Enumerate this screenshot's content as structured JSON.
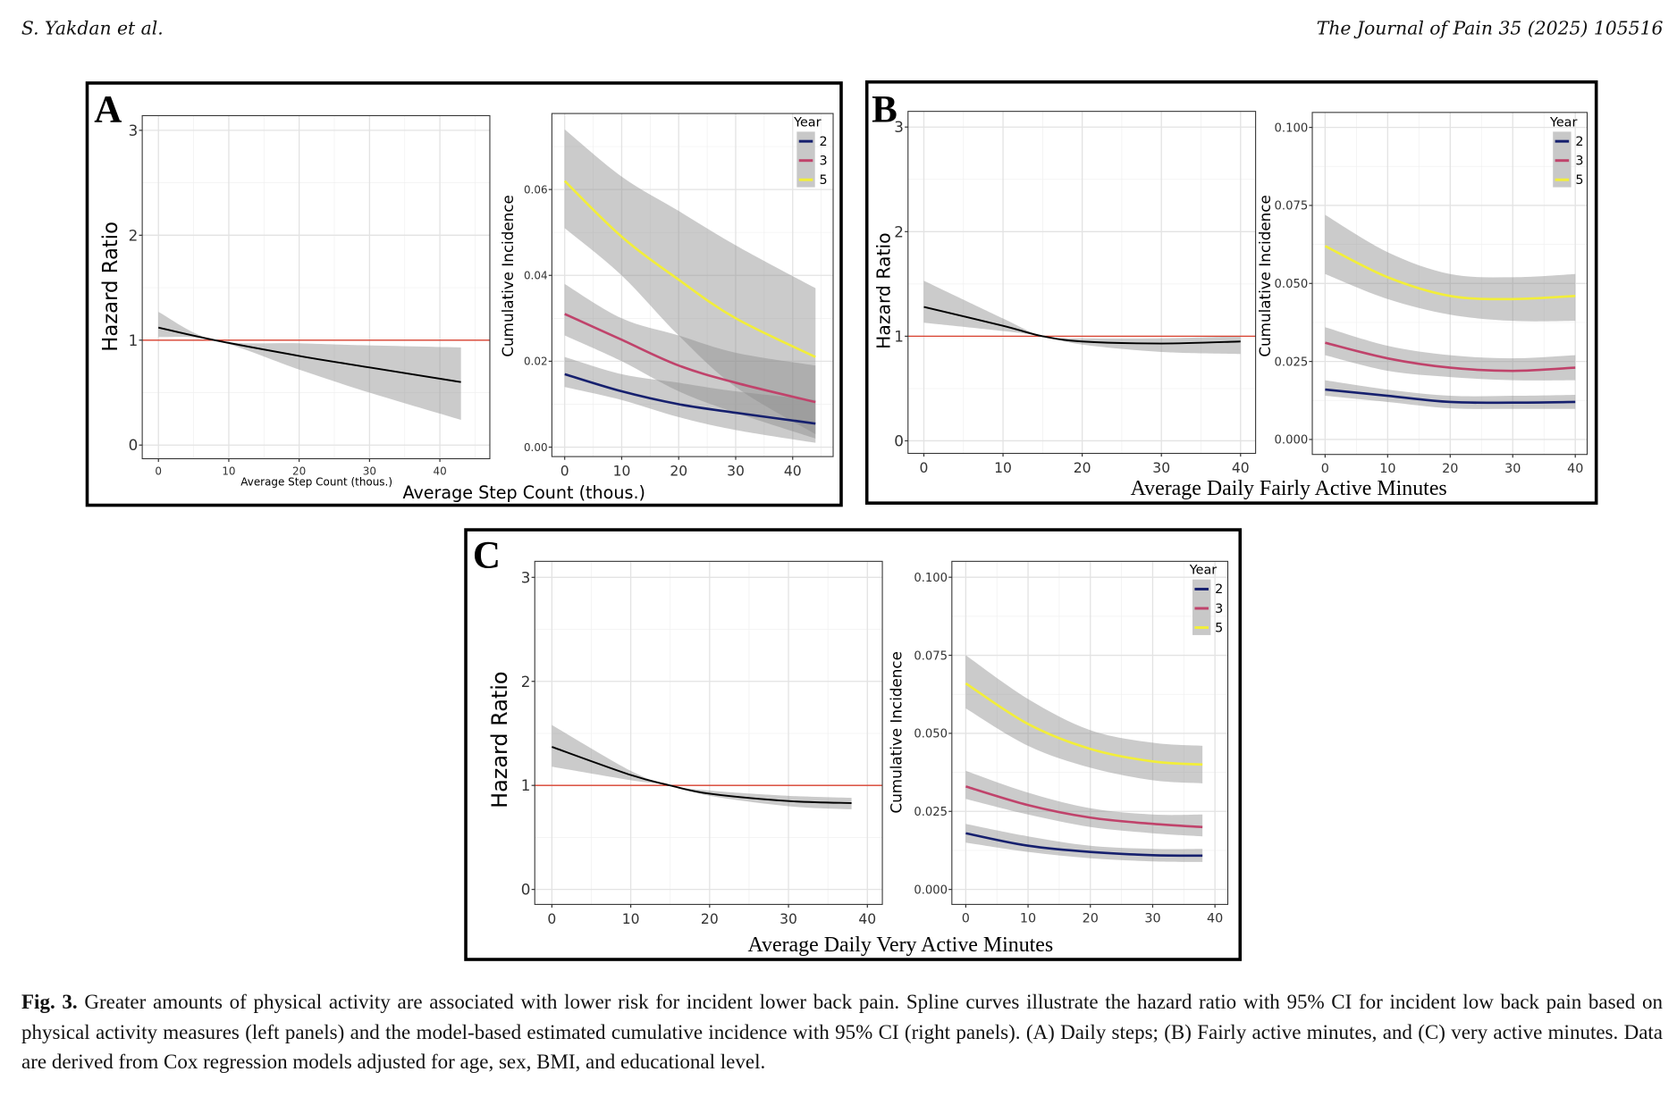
{
  "header": {
    "authors": "S. Yakdan et al.",
    "journal": "The Journal of Pain 35 (2025) 105516"
  },
  "panels": [
    {
      "letter": "A",
      "xlabel": "Average Step Count (thous.)"
    },
    {
      "letter": "B",
      "xlabel": "Average Daily Fairly Active Minutes"
    },
    {
      "letter": "C",
      "xlabel": "Average Daily Very Active Minutes"
    }
  ],
  "caption": {
    "label": "Fig. 3.",
    "text": " Greater amounts of physical activity are associated with lower risk for incident lower back pain. Spline curves illustrate the hazard ratio with 95% CI for incident low back pain based on physical activity measures (left panels) and the model-based estimated cumulative incidence with 95% CI (right panels). (A) Daily steps; (B) Fairly active minutes, and (C) very active minutes. Data are derived from Cox regression models adjusted for age, sex, BMI, and educational level."
  },
  "chart_data": [
    {
      "panel": "A",
      "type": "line",
      "ylabel": "Hazard Ratio",
      "xlabel": "Average Step Count (thous.)",
      "xlim": [
        -2.3,
        47.1
      ],
      "ylim": [
        -0.13,
        3.14
      ],
      "xticks": [
        0,
        10,
        20,
        30,
        40
      ],
      "xtick_labels": [
        "0",
        "10",
        "20",
        "30",
        "40"
      ],
      "yticks": [
        0,
        1,
        2,
        3
      ],
      "ytick_labels": [
        "0",
        "1",
        "2",
        "3"
      ],
      "grid": true,
      "reference_line": {
        "y": 1,
        "color": "#d9412f"
      },
      "series": [
        {
          "x": [
            0,
            8,
            20,
            30,
            43
          ],
          "y": [
            1.12,
            1.0,
            0.85,
            0.74,
            0.6
          ],
          "lower": [
            1.03,
            1.0,
            0.72,
            0.5,
            0.24
          ],
          "upper": [
            1.27,
            1.0,
            0.97,
            0.95,
            0.93
          ],
          "color": "#000000"
        }
      ]
    },
    {
      "panel": "A",
      "type": "line",
      "ylabel": "Cumulative Incidence",
      "xlim": [
        -2.25,
        47.1
      ],
      "ylim": [
        -0.0022,
        0.0777
      ],
      "xticks": [
        0,
        10,
        20,
        30,
        40
      ],
      "xtick_labels": [
        "0",
        "10",
        "20",
        "30",
        "40"
      ],
      "yticks": [
        0,
        0.02,
        0.04,
        0.06
      ],
      "ytick_labels": [
        "0.00",
        "0.02",
        "0.04",
        "0.06"
      ],
      "grid": true,
      "legend": {
        "title": "Year",
        "placement": "top-right"
      },
      "series": [
        {
          "name": "2",
          "color": "#16206e",
          "x": [
            0,
            10,
            20,
            30,
            44
          ],
          "y": [
            0.017,
            0.013,
            0.01,
            0.008,
            0.0055
          ],
          "lower": [
            0.014,
            0.011,
            0.007,
            0.004,
            0.001
          ],
          "upper": [
            0.021,
            0.017,
            0.015,
            0.013,
            0.011
          ]
        },
        {
          "name": "3",
          "color": "#c0436b",
          "x": [
            0,
            10,
            20,
            30,
            44
          ],
          "y": [
            0.031,
            0.025,
            0.019,
            0.015,
            0.0105
          ],
          "lower": [
            0.026,
            0.02,
            0.013,
            0.008,
            0.002
          ],
          "upper": [
            0.038,
            0.03,
            0.026,
            0.022,
            0.019
          ]
        },
        {
          "name": "5",
          "color": "#f2ee3a",
          "x": [
            0,
            10,
            20,
            30,
            44
          ],
          "y": [
            0.062,
            0.049,
            0.039,
            0.03,
            0.021
          ],
          "lower": [
            0.051,
            0.04,
            0.026,
            0.014,
            0.003
          ],
          "upper": [
            0.074,
            0.063,
            0.055,
            0.047,
            0.037
          ]
        }
      ]
    },
    {
      "panel": "B",
      "type": "line",
      "ylabel": "Hazard Ratio",
      "xlim": [
        -2.0,
        41.9
      ],
      "ylim": [
        -0.12,
        3.15
      ],
      "xticks": [
        0,
        10,
        20,
        30,
        40
      ],
      "xtick_labels": [
        "0",
        "10",
        "20",
        "30",
        "40"
      ],
      "yticks": [
        0,
        1,
        2,
        3
      ],
      "ytick_labels": [
        "0",
        "1",
        "2",
        "3"
      ],
      "grid": true,
      "reference_line": {
        "y": 1,
        "color": "#d9412f"
      },
      "series": [
        {
          "x": [
            0,
            10,
            15,
            20,
            30,
            40
          ],
          "y": [
            1.28,
            1.1,
            1.0,
            0.95,
            0.93,
            0.95
          ],
          "lower": [
            1.13,
            1.05,
            1.0,
            0.92,
            0.85,
            0.83
          ],
          "upper": [
            1.53,
            1.17,
            1.0,
            0.98,
            0.98,
            1.0
          ],
          "color": "#000000"
        }
      ]
    },
    {
      "panel": "B",
      "type": "line",
      "ylabel": "Cumulative Incidence",
      "xlim": [
        -2.05,
        41.9
      ],
      "ylim": [
        -0.0048,
        0.1048
      ],
      "xticks": [
        0,
        10,
        20,
        30,
        40
      ],
      "xtick_labels": [
        "0",
        "10",
        "20",
        "30",
        "40"
      ],
      "yticks": [
        0,
        0.025,
        0.05,
        0.075,
        0.1
      ],
      "ytick_labels": [
        "0.000",
        "0.025",
        "0.050",
        "0.075",
        "0.100"
      ],
      "grid": true,
      "legend": {
        "title": "Year",
        "placement": "top-right"
      },
      "series": [
        {
          "name": "2",
          "color": "#16206e",
          "x": [
            0,
            10,
            20,
            30,
            40
          ],
          "y": [
            0.016,
            0.014,
            0.012,
            0.0118,
            0.012
          ],
          "lower": [
            0.014,
            0.012,
            0.01,
            0.0098,
            0.0098
          ],
          "upper": [
            0.019,
            0.016,
            0.014,
            0.014,
            0.0143
          ]
        },
        {
          "name": "3",
          "color": "#c0436b",
          "x": [
            0,
            10,
            20,
            30,
            40
          ],
          "y": [
            0.031,
            0.026,
            0.023,
            0.022,
            0.023
          ],
          "lower": [
            0.027,
            0.022,
            0.02,
            0.019,
            0.019
          ],
          "upper": [
            0.036,
            0.03,
            0.027,
            0.026,
            0.027
          ]
        },
        {
          "name": "5",
          "color": "#f2ee3a",
          "x": [
            0,
            10,
            20,
            30,
            40
          ],
          "y": [
            0.062,
            0.052,
            0.046,
            0.045,
            0.046
          ],
          "lower": [
            0.053,
            0.045,
            0.04,
            0.038,
            0.038
          ],
          "upper": [
            0.072,
            0.06,
            0.053,
            0.052,
            0.053
          ]
        }
      ]
    },
    {
      "panel": "C",
      "type": "line",
      "ylabel": "Hazard Ratio",
      "xlim": [
        -2.17,
        41.9
      ],
      "ylim": [
        -0.144,
        3.154
      ],
      "xticks": [
        0,
        10,
        20,
        30,
        40
      ],
      "xtick_labels": [
        "0",
        "10",
        "20",
        "30",
        "40"
      ],
      "yticks": [
        0,
        1,
        2,
        3
      ],
      "ytick_labels": [
        "0",
        "1",
        "2",
        "3"
      ],
      "grid": true,
      "reference_line": {
        "y": 1,
        "color": "#d9412f"
      },
      "series": [
        {
          "x": [
            0,
            10,
            15,
            20,
            30,
            38
          ],
          "y": [
            1.37,
            1.1,
            1.0,
            0.92,
            0.85,
            0.83
          ],
          "lower": [
            1.18,
            1.05,
            1.0,
            0.9,
            0.8,
            0.77
          ],
          "upper": [
            1.58,
            1.14,
            1.0,
            0.95,
            0.9,
            0.88
          ],
          "color": "#000000"
        }
      ]
    },
    {
      "panel": "C",
      "type": "line",
      "ylabel": "Cumulative Incidence",
      "xlim": [
        -2.23,
        42.06
      ],
      "ylim": [
        -0.0048,
        0.1051
      ],
      "xticks": [
        0,
        10,
        20,
        30,
        40
      ],
      "xtick_labels": [
        "0",
        "10",
        "20",
        "30",
        "40"
      ],
      "yticks": [
        0,
        0.025,
        0.05,
        0.075,
        0.1
      ],
      "ytick_labels": [
        "0.000",
        "0.025",
        "0.050",
        "0.075",
        "0.100"
      ],
      "grid": true,
      "legend": {
        "title": "Year",
        "placement": "top-right"
      },
      "series": [
        {
          "name": "2",
          "color": "#16206e",
          "x": [
            0,
            10,
            20,
            30,
            38
          ],
          "y": [
            0.018,
            0.014,
            0.012,
            0.011,
            0.0108
          ],
          "lower": [
            0.015,
            0.012,
            0.01,
            0.009,
            0.0088
          ],
          "upper": [
            0.021,
            0.017,
            0.014,
            0.013,
            0.013
          ]
        },
        {
          "name": "3",
          "color": "#c0436b",
          "x": [
            0,
            10,
            20,
            30,
            38
          ],
          "y": [
            0.033,
            0.027,
            0.023,
            0.021,
            0.02
          ],
          "lower": [
            0.029,
            0.024,
            0.02,
            0.018,
            0.017
          ],
          "upper": [
            0.038,
            0.031,
            0.026,
            0.024,
            0.024
          ]
        },
        {
          "name": "5",
          "color": "#f2ee3a",
          "x": [
            0,
            10,
            20,
            30,
            38
          ],
          "y": [
            0.066,
            0.053,
            0.045,
            0.041,
            0.04
          ],
          "lower": [
            0.058,
            0.046,
            0.039,
            0.035,
            0.034
          ],
          "upper": [
            0.075,
            0.061,
            0.051,
            0.047,
            0.046
          ]
        }
      ]
    }
  ]
}
